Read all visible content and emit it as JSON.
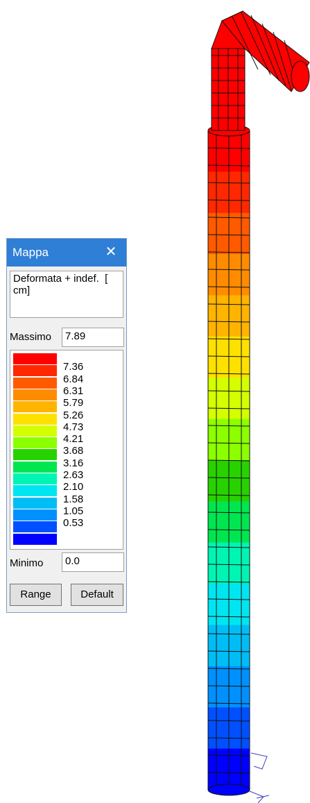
{
  "legend": {
    "title": "Mappa",
    "close_glyph": "✕",
    "description": "Deformata + indef.  [ cm]",
    "max_label": "Massimo",
    "max_value": "7.89",
    "min_label": "Minimo",
    "min_value": "0.0",
    "range_button": "Range",
    "default_button": "Default",
    "colors": [
      "#ff0000",
      "#ff2800",
      "#ff5a00",
      "#ff8c00",
      "#ffb400",
      "#ffe100",
      "#d4ff00",
      "#8cff00",
      "#28d200",
      "#00e650",
      "#00f5b4",
      "#00e6f0",
      "#00bef5",
      "#0091ff",
      "#0050ff",
      "#0000ff"
    ],
    "ticks": [
      "7.36",
      "6.84",
      "6.31",
      "5.79",
      "5.26",
      "4.73",
      "4.21",
      "3.68",
      "3.16",
      "2.63",
      "2.10",
      "1.58",
      "1.05",
      "0.53"
    ]
  },
  "model": {
    "accent_title_bar": "#2f7fd6"
  }
}
